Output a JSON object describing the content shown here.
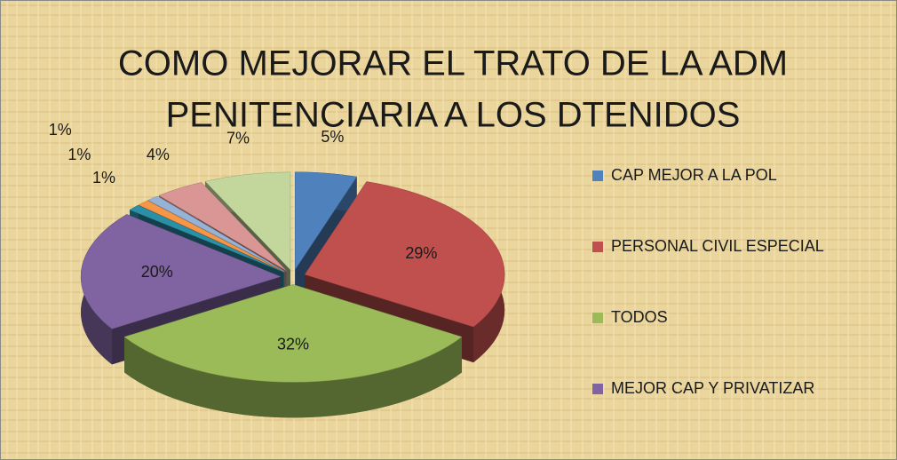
{
  "chart_data": {
    "type": "pie",
    "title": [
      "COMO MEJORAR EL TRATO DE LA ADM",
      "PENITENCIARIA A LOS DTENIDOS"
    ],
    "categories": [
      "CAP MEJOR  A LA  POL",
      "PERSONAL CIVIL ESPECIAL",
      "TODOS",
      "MEJOR CAP Y PRIVATIZAR",
      null,
      null,
      null,
      null,
      null
    ],
    "values": [
      5,
      29,
      32,
      20,
      1,
      1,
      1,
      4,
      7
    ],
    "value_labels": [
      "5%",
      "29%",
      "32%",
      "20%",
      "1%",
      "1%",
      "1%",
      "4%",
      "7%"
    ],
    "colors": [
      "#4f81bd",
      "#c0504d",
      "#9bbb59",
      "#8064a2",
      "#2c8fa8",
      "#f79646",
      "#95b3d7",
      "#d99694",
      "#c3d69b"
    ],
    "legend": "right"
  }
}
